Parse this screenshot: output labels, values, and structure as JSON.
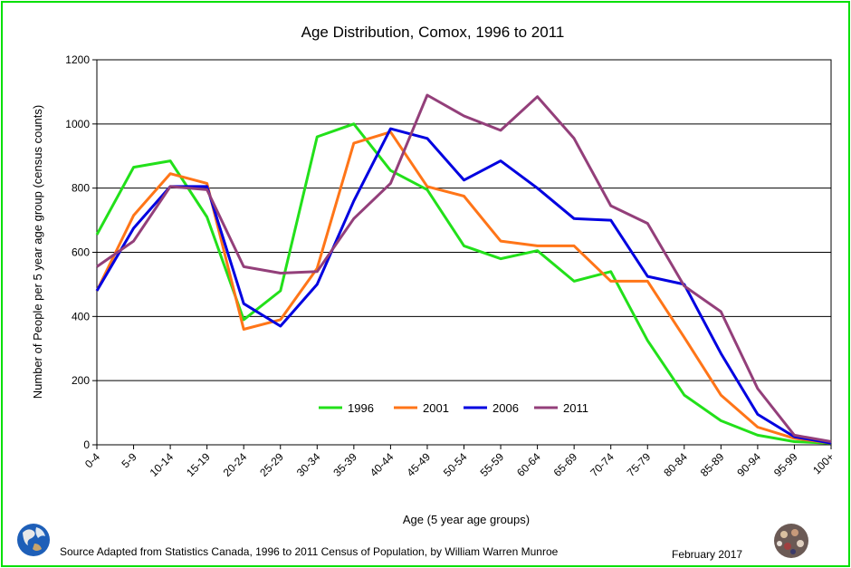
{
  "chart_data": {
    "type": "line",
    "title": "Age Distribution, Comox, 1996 to 2011",
    "xlabel": "Age (5 year age groups)",
    "ylabel": "Number of People per 5 year age group (census counts)",
    "ylim": [
      0,
      1200
    ],
    "yticks": [
      0,
      200,
      400,
      600,
      800,
      1000,
      1200
    ],
    "grid": true,
    "legend_position": "bottom-center",
    "categories": [
      "0-4",
      "5-9",
      "10-14",
      "15-19",
      "20-24",
      "25-29",
      "30-34",
      "35-39",
      "40-44",
      "45-49",
      "50-54",
      "55-59",
      "60-64",
      "65-69",
      "70-74",
      "75-79",
      "80-84",
      "85-89",
      "90-94",
      "95-99",
      "100+"
    ],
    "series": [
      {
        "name": "1996",
        "color": "#22e01a",
        "values": [
          655,
          865,
          885,
          710,
          390,
          480,
          960,
          1000,
          855,
          795,
          620,
          580,
          605,
          510,
          540,
          325,
          155,
          75,
          30,
          10,
          5
        ]
      },
      {
        "name": "2001",
        "color": "#ff7518",
        "values": [
          480,
          715,
          845,
          815,
          360,
          390,
          550,
          940,
          975,
          805,
          775,
          635,
          620,
          620,
          510,
          510,
          335,
          155,
          55,
          20,
          5
        ]
      },
      {
        "name": "2006",
        "color": "#0000e0",
        "values": [
          480,
          675,
          805,
          805,
          440,
          370,
          500,
          760,
          985,
          955,
          825,
          885,
          800,
          705,
          700,
          525,
          500,
          285,
          95,
          25,
          5
        ]
      },
      {
        "name": "2011",
        "color": "#933f7a",
        "values": [
          555,
          635,
          805,
          795,
          555,
          535,
          540,
          705,
          815,
          1090,
          1025,
          980,
          1085,
          955,
          745,
          690,
          495,
          415,
          175,
          30,
          10
        ]
      }
    ]
  },
  "footer": {
    "source": "Source Adapted from Statistics Canada, 1996 to 2011 Census of Population, by William Warren Munroe",
    "date": "February 2017"
  },
  "icons": {
    "left": "earth-globe-icon",
    "right": "crowd-photo-icon"
  }
}
